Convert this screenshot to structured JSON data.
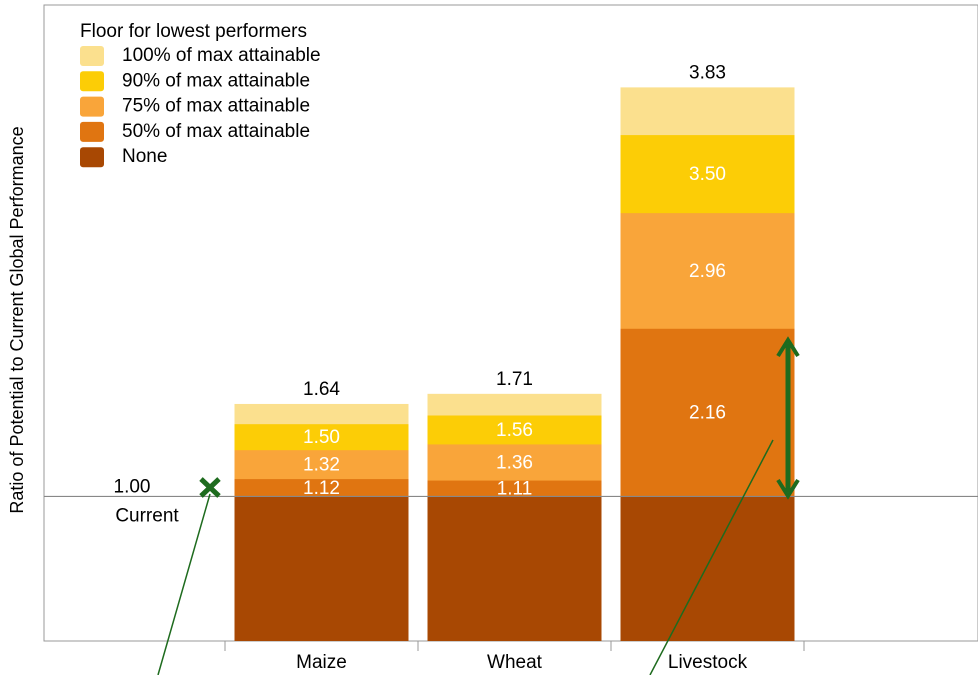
{
  "chart_data": {
    "type": "overlapping-bar",
    "y_label": "Ratio of Potential to Current Global Performance",
    "legend_title": "Floor for lowest performers",
    "categories": [
      "Maize",
      "Wheat",
      "Livestock"
    ],
    "series": [
      {
        "name": "100% of max attainable",
        "color": "#fbe08e",
        "values": [
          1.64,
          1.71,
          3.83
        ],
        "value_labels": [
          "1.64",
          "1.71",
          "3.83"
        ]
      },
      {
        "name": "90% of max attainable",
        "color": "#fccd06",
        "values": [
          1.5,
          1.56,
          3.5
        ],
        "value_labels": [
          "1.50",
          "1.56",
          "3.50"
        ]
      },
      {
        "name": "75% of max attainable",
        "color": "#f9a53a",
        "values": [
          1.32,
          1.36,
          2.96
        ],
        "value_labels": [
          "1.32",
          "1.36",
          "2.96"
        ]
      },
      {
        "name": "50% of max attainable",
        "color": "#e07511",
        "values": [
          1.12,
          1.11,
          2.16
        ],
        "value_labels": [
          "1.12",
          "1.11",
          "2.16"
        ]
      },
      {
        "name": "None",
        "color": "#a84803",
        "values": [
          1,
          1,
          1
        ]
      }
    ],
    "reference_line": {
      "value": 1,
      "label": "1.00",
      "text": "Current"
    },
    "ylim": [
      0,
      4.4
    ]
  }
}
